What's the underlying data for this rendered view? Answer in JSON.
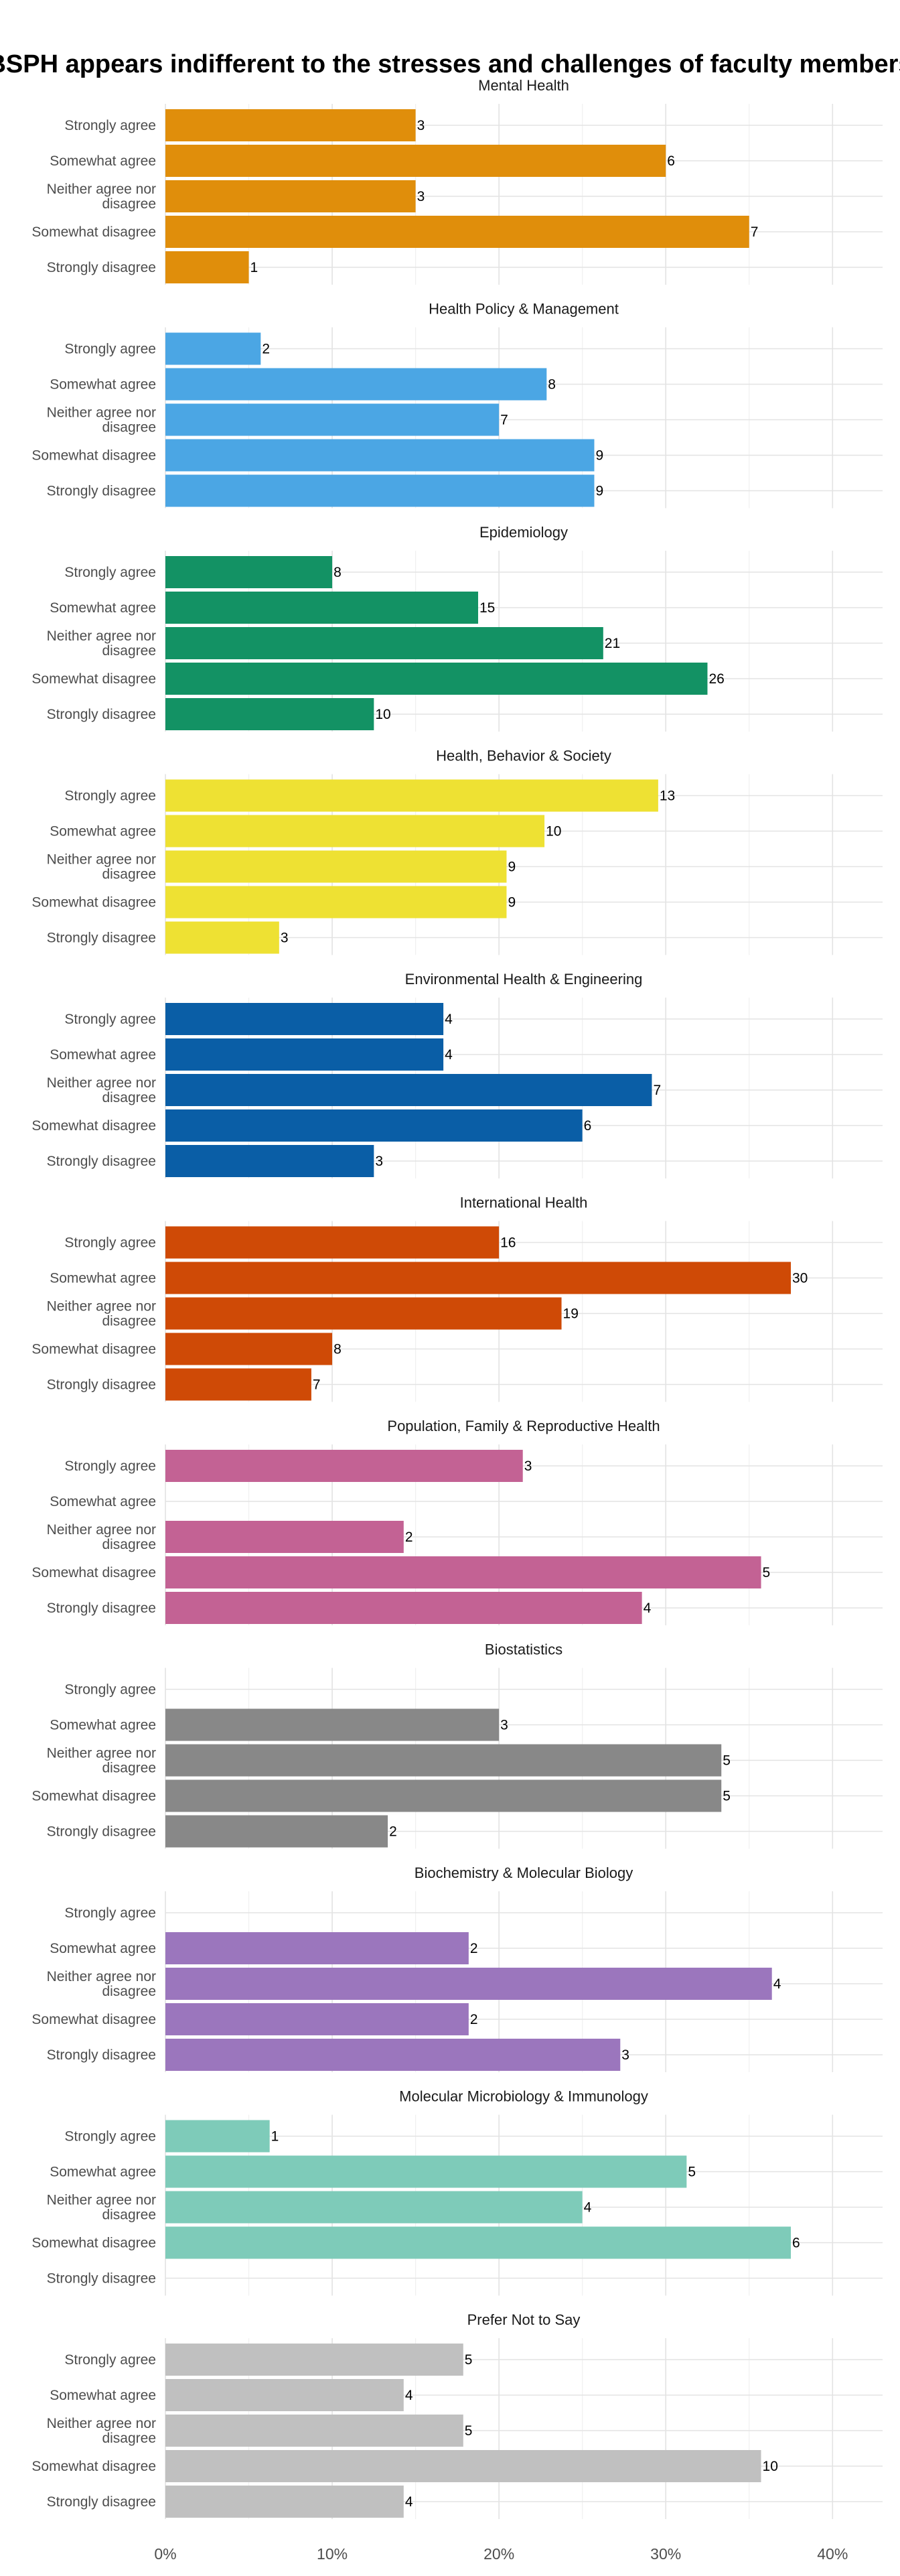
{
  "chart_data": {
    "type": "bar",
    "orientation": "horizontal",
    "title": "BSPH appears indifferent to the stresses and challenges of faculty members",
    "xlabel": "",
    "ylabel": "",
    "x_axis_format": "percent",
    "xlim": [
      0,
      0.43
    ],
    "x_ticks": [
      0,
      0.1,
      0.2,
      0.3,
      0.4
    ],
    "x_tick_labels": [
      "0%",
      "10%",
      "20%",
      "30%",
      "40%"
    ],
    "grid": true,
    "legend": "none",
    "categories": [
      "Strongly agree",
      "Somewhat agree",
      "Neither agree nor disagree",
      "Somewhat disagree",
      "Strongly disagree"
    ],
    "facets": [
      {
        "name": "Mental Health",
        "color": "#E08E0B",
        "counts": [
          3,
          6,
          3,
          7,
          1
        ]
      },
      {
        "name": "Health Policy & Management",
        "color": "#4BA6E4",
        "counts": [
          2,
          8,
          7,
          9,
          9
        ]
      },
      {
        "name": "Epidemiology",
        "color": "#139264",
        "counts": [
          8,
          15,
          21,
          26,
          10
        ]
      },
      {
        "name": "Health, Behavior & Society",
        "color": "#EEE133",
        "counts": [
          13,
          10,
          9,
          9,
          3
        ]
      },
      {
        "name": "Environmental Health & Engineering",
        "color": "#0A5EA6",
        "counts": [
          4,
          4,
          7,
          6,
          3
        ]
      },
      {
        "name": "International Health",
        "color": "#CF4A06",
        "counts": [
          16,
          30,
          19,
          8,
          7
        ]
      },
      {
        "name": "Population, Family & Reproductive Health",
        "color": "#C36294",
        "counts": [
          3,
          0,
          2,
          5,
          4
        ]
      },
      {
        "name": "Biostatistics",
        "color": "#888888",
        "counts": [
          0,
          3,
          5,
          5,
          2
        ]
      },
      {
        "name": "Biochemistry & Molecular Biology",
        "color": "#9B76BD",
        "counts": [
          0,
          2,
          4,
          2,
          3
        ]
      },
      {
        "name": "Molecular Microbiology & Immunology",
        "color": "#7ECBB9",
        "counts": [
          1,
          5,
          4,
          6,
          0
        ]
      },
      {
        "name": "Prefer Not to Say",
        "color": "#C0C0C0",
        "counts": [
          5,
          4,
          5,
          10,
          4
        ]
      }
    ]
  }
}
